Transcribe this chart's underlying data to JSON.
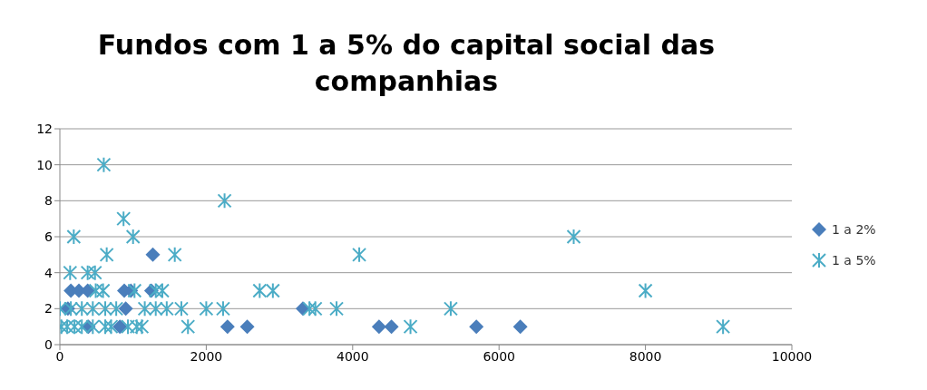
{
  "chart_data": {
    "type": "scatter",
    "title": "Fundos com 1 a 5% do capital social das companhias",
    "xlim": [
      0,
      10000
    ],
    "xticks": [
      0,
      2000,
      4000,
      6000,
      8000,
      10000
    ],
    "ylim": [
      0,
      12
    ],
    "yticks": [
      0,
      2,
      4,
      6,
      8,
      10,
      12
    ],
    "grid": "y",
    "legend": "right",
    "series": [
      {
        "name": "1 a 2%",
        "color": "#4a7ebb",
        "marker": "diamond",
        "x": [
          150,
          260,
          380,
          880,
          970,
          1250,
          1270,
          110,
          900,
          3320,
          390,
          820,
          2290,
          2560,
          4360,
          4530,
          5690,
          6290
        ],
        "values": [
          3,
          3,
          3,
          3,
          3,
          3,
          5,
          2,
          2,
          2,
          1,
          1,
          1,
          1,
          1,
          1,
          1,
          1
        ]
      },
      {
        "name": "1 a 5%",
        "color": "#4bacc6",
        "marker": "cross",
        "x": [
          600,
          2250,
          870,
          190,
          1000,
          7020,
          640,
          1570,
          4090,
          140,
          380,
          480,
          490,
          590,
          1020,
          1310,
          1400,
          2730,
          2910,
          0,
          150,
          300,
          450,
          620,
          770,
          1160,
          1310,
          1460,
          1660,
          2000,
          2230,
          3410,
          3490,
          3780,
          5340,
          20,
          100,
          200,
          300,
          450,
          620,
          700,
          930,
          1050,
          1120,
          1750,
          4790,
          9060,
          8000
        ],
        "values": [
          10,
          8,
          7,
          6,
          6,
          6,
          5,
          5,
          5,
          4,
          4,
          4,
          3,
          3,
          3,
          3,
          3,
          3,
          3,
          2,
          2,
          2,
          2,
          2,
          2,
          2,
          2,
          2,
          2,
          2,
          2,
          2,
          2,
          2,
          2,
          1,
          1,
          1,
          1,
          1,
          1,
          1,
          1,
          1,
          1,
          1,
          1,
          1,
          3
        ]
      }
    ]
  }
}
